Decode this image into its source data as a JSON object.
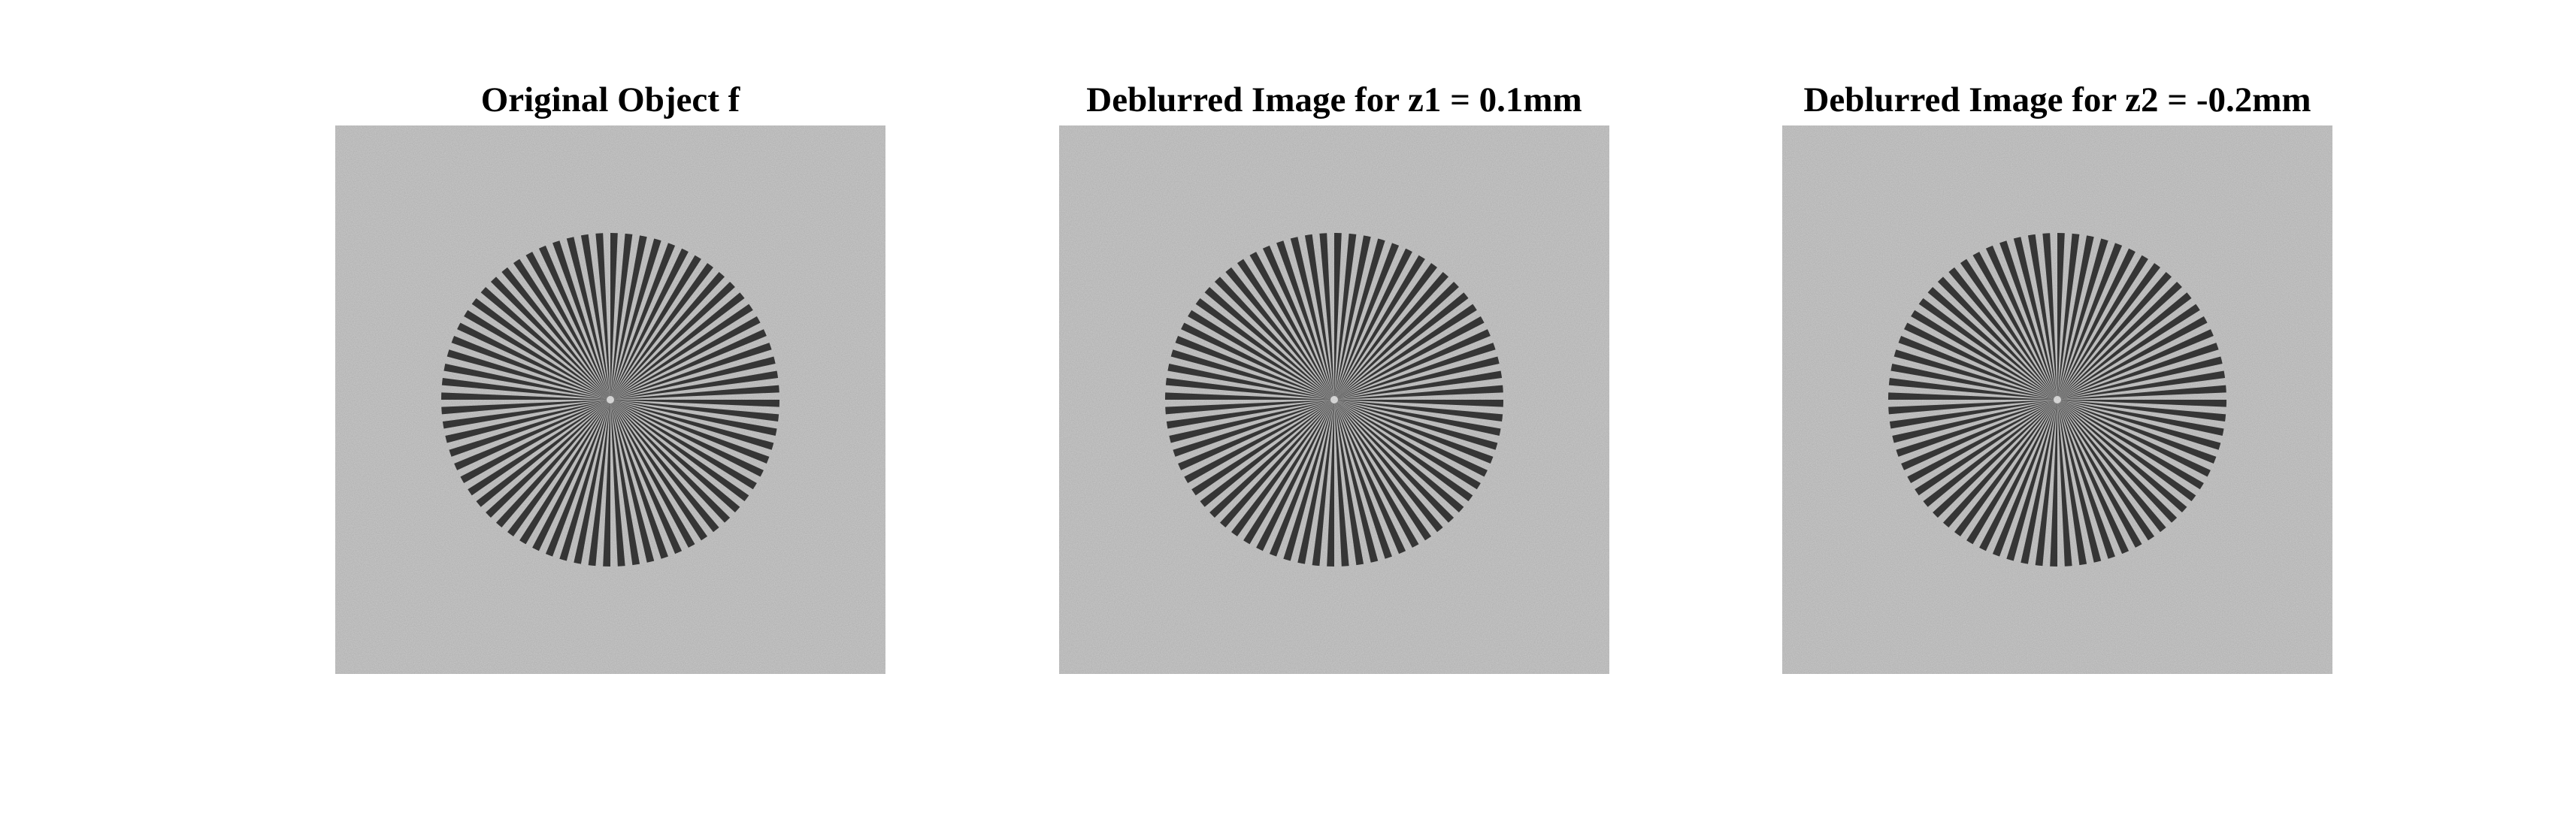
{
  "figure": {
    "panels": [
      {
        "title": "Original Object f",
        "image": "siemens-star-test-pattern"
      },
      {
        "title": "Deblurred Image for z1 = 0.1mm",
        "image": "siemens-star-test-pattern"
      },
      {
        "title": "Deblurred Image for z2 = -0.2mm",
        "image": "siemens-star-test-pattern"
      }
    ],
    "colors": {
      "background": "#cccccc",
      "spokes": "#3a3a3a",
      "page": "#ffffff"
    },
    "spoke_count": 72
  }
}
